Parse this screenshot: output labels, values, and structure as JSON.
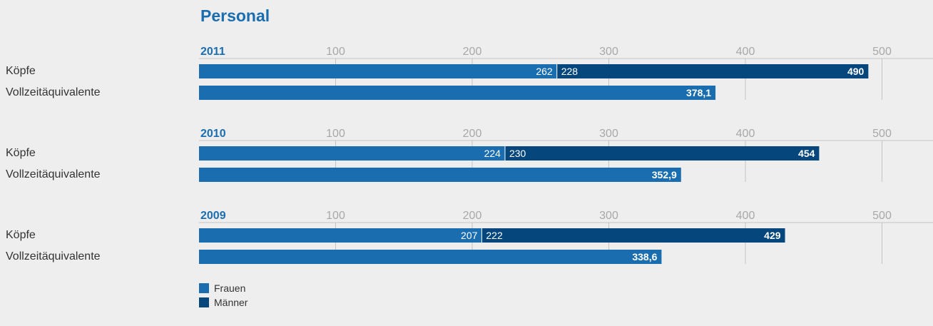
{
  "chart_data": {
    "type": "bar",
    "orientation": "horizontal",
    "title": "Personal",
    "xlim": [
      0,
      550
    ],
    "ticks": [
      100,
      200,
      300,
      400,
      500
    ],
    "tick_labels": [
      "100",
      "200",
      "300",
      "400",
      "500"
    ],
    "row_labels": {
      "heads": "Köpfe",
      "fte": "Vollzeitäquivalente"
    },
    "colors": {
      "frauen": "#1a6eb0",
      "maenner": "#05467d",
      "fte": "#1a6eb0",
      "grid": "#c4c4c4",
      "label": "#333333"
    },
    "legend": [
      {
        "name": "Frauen",
        "color": "#1a6eb0"
      },
      {
        "name": "Männer",
        "color": "#05467d"
      }
    ],
    "groups": [
      {
        "year": "2011",
        "frauen": 262,
        "maenner": 228,
        "total": 490,
        "total_label": "490",
        "frauen_label": "262",
        "maenner_label": "228",
        "fte": 378.1,
        "fte_label": "378,1"
      },
      {
        "year": "2010",
        "frauen": 224,
        "maenner": 230,
        "total": 454,
        "total_label": "454",
        "frauen_label": "224",
        "maenner_label": "230",
        "fte": 352.9,
        "fte_label": "352,9"
      },
      {
        "year": "2009",
        "frauen": 207,
        "maenner": 222,
        "total": 429,
        "total_label": "429",
        "frauen_label": "207",
        "maenner_label": "222",
        "fte": 338.6,
        "fte_label": "338,6"
      }
    ]
  }
}
